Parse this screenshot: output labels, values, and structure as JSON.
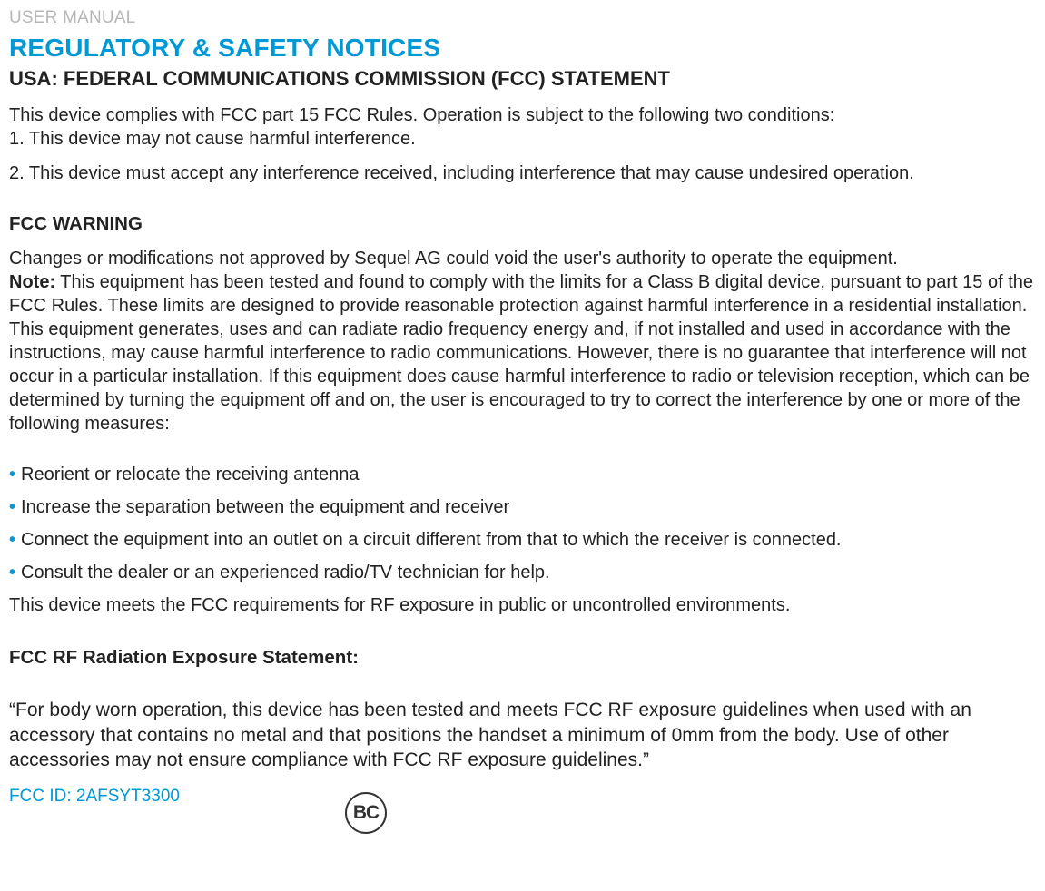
{
  "header": {
    "manual_label": "USER MANUAL"
  },
  "main_title": "REGULATORY & SAFETY NOTICES",
  "section_usa": {
    "heading": "USA: FEDERAL COMMUNICATIONS COMMISSION (FCC) STATEMENT",
    "intro": "This device complies with FCC part 15 FCC Rules. Operation is subject to the following two conditions:",
    "cond1": "1. This device may not cause harmful interference.",
    "cond2": "2. This device must accept any interference received, including interference that may cause undesired operation."
  },
  "fcc_warning": {
    "heading": "FCC WARNING",
    "line1": "Changes or modifications not approved by Sequel AG could void the user's authority to operate the equipment.",
    "note_label": "Note:",
    "note_text": " This equipment has been tested and found to comply with the limits for a Class B digital device, pursuant to part 15 of the FCC Rules. These limits are designed to provide reasonable protection against harmful interference in a residential installation. This equipment generates, uses and can radiate radio frequency energy and, if not installed and used in accordance with the instructions, may cause harmful interference to radio communications. However, there is no guarantee that interference will not occur in a particular installation. If this equipment does cause harmful interference to radio or television reception, which can be determined by turning the equipment off and on, the user is encouraged to try to correct the interference by one or more of the following measures:"
  },
  "bullets": {
    "b1": "Reorient or relocate the receiving antenna",
    "b2": "Increase the separation between the equipment and receiver",
    "b3": "Connect the equipment into an outlet on a circuit different from that to which the receiver is connected.",
    "b4": "Consult the dealer or an experienced radio/TV technician for help."
  },
  "rf_meet": "This device meets the FCC requirements for RF exposure in public or uncontrolled environments.",
  "radiation": {
    "heading": "FCC RF Radiation Exposure Statement:",
    "body": "“For body worn operation, this device has been tested and meets FCC RF exposure guidelines when used with an accessory that contains no metal and that positions the handset a minimum of 0mm from the body. Use of other accessories may not ensure compliance with FCC RF exposure guidelines.”"
  },
  "fcc_id": "FCC ID: 2AFSYT3300",
  "bc_logo_text": "BC",
  "colors": {
    "accent": "#0099d6",
    "muted": "#b7b7b7",
    "text": "#222222",
    "background": "#ffffff"
  }
}
